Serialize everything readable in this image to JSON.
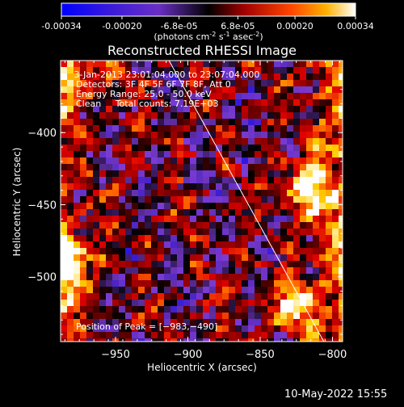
{
  "colorbar": {
    "ticks": [
      "-0.00034",
      "-0.00020",
      "-6.8e-05",
      "6.8e-05",
      "0.00020",
      "0.00034"
    ],
    "tick_values": [
      -0.00034,
      -0.0002,
      -6.8e-05,
      6.8e-05,
      0.0002,
      0.00034
    ],
    "range": [
      -0.00034,
      0.00034
    ],
    "units_parts": [
      "(photons cm",
      "-2",
      " s",
      "-1",
      " asec",
      "-2",
      ")"
    ]
  },
  "chart_data": {
    "type": "heatmap",
    "title": "Reconstructed RHESSI Image",
    "xlabel": "Heliocentric X (arcsec)",
    "ylabel": "Heliocentric Y (arcsec)",
    "xlim": [
      -988,
      -793
    ],
    "ylim": [
      -545,
      -350
    ],
    "xticks": [
      -950,
      -900,
      -850,
      -800
    ],
    "xtick_labels": [
      "−950",
      "−900",
      "−850",
      "−800"
    ],
    "yticks": [
      -400,
      -450,
      -500
    ],
    "ytick_labels": [
      "−400",
      "−450",
      "−500"
    ],
    "colormap": [
      "#0000ff",
      "#5a2bc0",
      "#7b3cd4",
      "#000000",
      "#8b0000",
      "#e00000",
      "#ff6a00",
      "#ffd000",
      "#ffffff"
    ],
    "limb_line": [
      [
        -913,
        -350
      ],
      [
        -806,
        -545
      ]
    ],
    "peak": [
      -983,
      -490
    ],
    "bright_regions": [
      {
        "x": -983,
        "y": -490,
        "level": 0.00034
      },
      {
        "x": -820,
        "y": -440,
        "level": 0.00028
      },
      {
        "x": -830,
        "y": -520,
        "level": 0.00025
      },
      {
        "x": -970,
        "y": -360,
        "level": 0.0002
      }
    ],
    "annotations": [
      " 3-Jan-2013 23:01:04.000 to 23:07:04.000",
      "Detectors: 3F 4F 5F 6F 7F 8F, Att 0",
      "Energy Range: 25.0 - 50.0 keV",
      "Clean     Total counts: 7.19E+03"
    ],
    "peak_label": "Position of Peak = [−983,−490]"
  },
  "footer": {
    "date": "10-May-2022 15:55"
  }
}
